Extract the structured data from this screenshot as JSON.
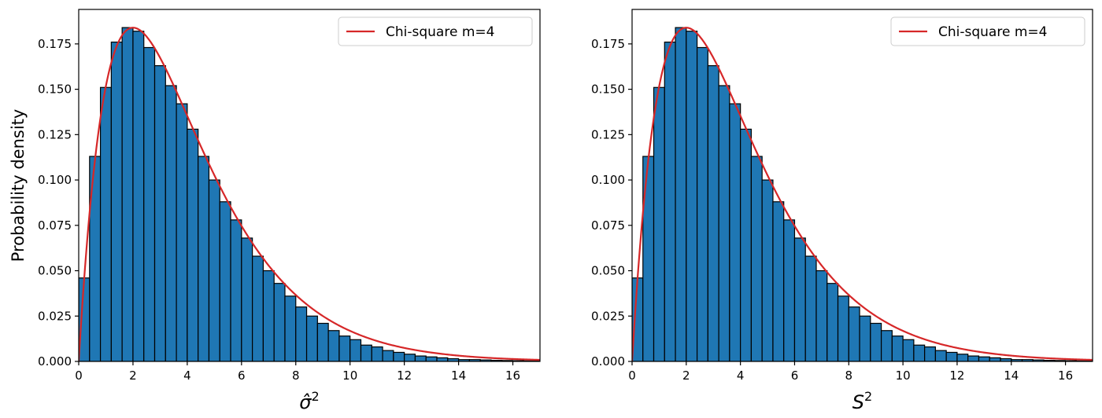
{
  "chart_data": [
    {
      "type": "bar",
      "xlabel_base": "σ̂",
      "xlabel_sup": "2",
      "ylabel": "Probability density",
      "xlim": [
        0,
        17
      ],
      "ylim": [
        0,
        0.194
      ],
      "xticks": [
        0,
        2,
        4,
        6,
        8,
        10,
        12,
        14,
        16
      ],
      "xtick_labels": [
        "0",
        "2",
        "4",
        "6",
        "8",
        "10",
        "12",
        "14",
        "16"
      ],
      "yticks": [
        0,
        0.025,
        0.05,
        0.075,
        0.1,
        0.125,
        0.15,
        0.175
      ],
      "ytick_labels": [
        "0.000",
        "0.025",
        "0.050",
        "0.075",
        "0.100",
        "0.125",
        "0.150",
        "0.175"
      ],
      "bin_width": 0.4,
      "bin_start": 0,
      "values": [
        0.046,
        0.113,
        0.151,
        0.176,
        0.184,
        0.182,
        0.173,
        0.163,
        0.152,
        0.142,
        0.128,
        0.113,
        0.1,
        0.088,
        0.078,
        0.068,
        0.058,
        0.05,
        0.043,
        0.036,
        0.03,
        0.025,
        0.021,
        0.017,
        0.014,
        0.012,
        0.009,
        0.008,
        0.006,
        0.005,
        0.004,
        0.003,
        0.0025,
        0.002,
        0.0015,
        0.001,
        0.001,
        0.0008,
        0.0006,
        0.0005,
        0.0004,
        0.0003,
        0.0002
      ],
      "bar_color": "#1f77b4",
      "curve": {
        "name": "Chi-square m=4",
        "dof": 4,
        "color": "#d62728"
      },
      "legend_position": "top-right",
      "grid": false
    },
    {
      "type": "bar",
      "xlabel_base": "S",
      "xlabel_sup": "2",
      "ylabel": "",
      "xlim": [
        0,
        17
      ],
      "ylim": [
        0,
        0.194
      ],
      "xticks": [
        0,
        2,
        4,
        6,
        8,
        10,
        12,
        14,
        16
      ],
      "xtick_labels": [
        "0",
        "2",
        "4",
        "6",
        "8",
        "10",
        "12",
        "14",
        "16"
      ],
      "yticks": [
        0,
        0.025,
        0.05,
        0.075,
        0.1,
        0.125,
        0.15,
        0.175
      ],
      "ytick_labels": [
        "0.000",
        "0.025",
        "0.050",
        "0.075",
        "0.100",
        "0.125",
        "0.150",
        "0.175"
      ],
      "bin_width": 0.4,
      "bin_start": 0,
      "values": [
        0.046,
        0.113,
        0.151,
        0.176,
        0.184,
        0.182,
        0.173,
        0.163,
        0.152,
        0.142,
        0.128,
        0.113,
        0.1,
        0.088,
        0.078,
        0.068,
        0.058,
        0.05,
        0.043,
        0.036,
        0.03,
        0.025,
        0.021,
        0.017,
        0.014,
        0.012,
        0.009,
        0.008,
        0.006,
        0.005,
        0.004,
        0.003,
        0.0025,
        0.002,
        0.0015,
        0.001,
        0.001,
        0.0008,
        0.0006,
        0.0005,
        0.0004,
        0.0003,
        0.0002
      ],
      "bar_color": "#1f77b4",
      "curve": {
        "name": "Chi-square m=4",
        "dof": 4,
        "color": "#d62728"
      },
      "legend_position": "top-right",
      "grid": false
    }
  ]
}
